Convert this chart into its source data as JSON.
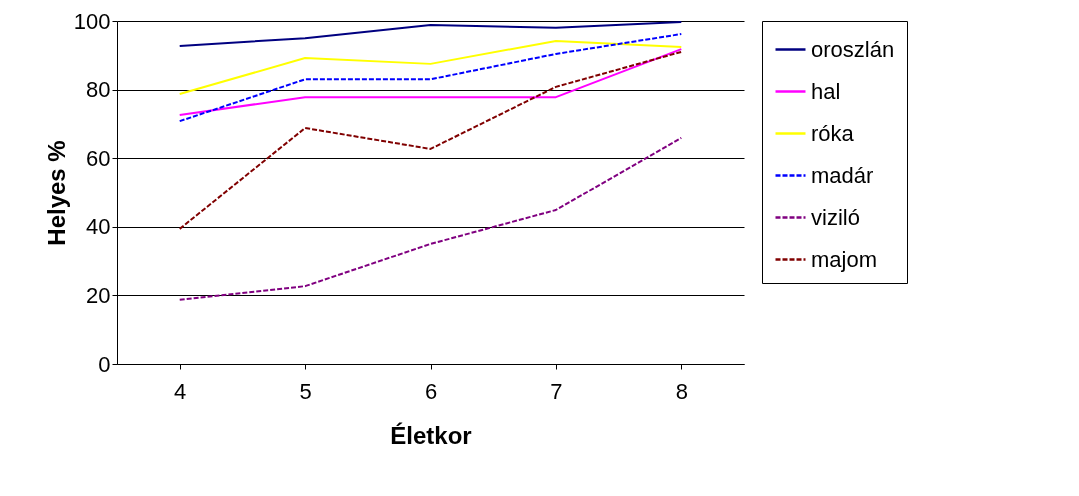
{
  "chart_data": {
    "type": "line",
    "xlabel": "Életkor",
    "ylabel": "Helyes %",
    "categories": [
      "4",
      "5",
      "6",
      "7",
      "8"
    ],
    "ylim": [
      0,
      100
    ],
    "yticks": [
      0,
      20,
      40,
      60,
      80,
      100
    ],
    "grid": "y",
    "legend": "right",
    "marker": "none",
    "series": [
      {
        "name": "oroszlán",
        "color": "#000080",
        "line_style": "solid",
        "values": [
          92.7,
          95,
          98.8,
          98,
          99.7
        ]
      },
      {
        "name": "hal",
        "color": "#ff00ff",
        "line_style": "solid",
        "values": [
          72.6,
          77.8,
          77.8,
          77.8,
          91.8
        ]
      },
      {
        "name": "róka",
        "color": "#ffff00",
        "line_style": "solid",
        "values": [
          78.7,
          89.2,
          87.5,
          94.2,
          92.4
        ]
      },
      {
        "name": "madár",
        "color": "#0000ff",
        "line_style": "dashed",
        "values": [
          70.8,
          83,
          83,
          90.4,
          96.2
        ]
      },
      {
        "name": "viziló",
        "color": "#800080",
        "line_style": "dashed",
        "values": [
          18.7,
          22.7,
          35,
          44.9,
          65.9
        ]
      },
      {
        "name": "majom",
        "color": "#800000",
        "line_style": "dashed",
        "values": [
          39.4,
          68.8,
          62.7,
          80.8,
          91
        ]
      }
    ]
  }
}
